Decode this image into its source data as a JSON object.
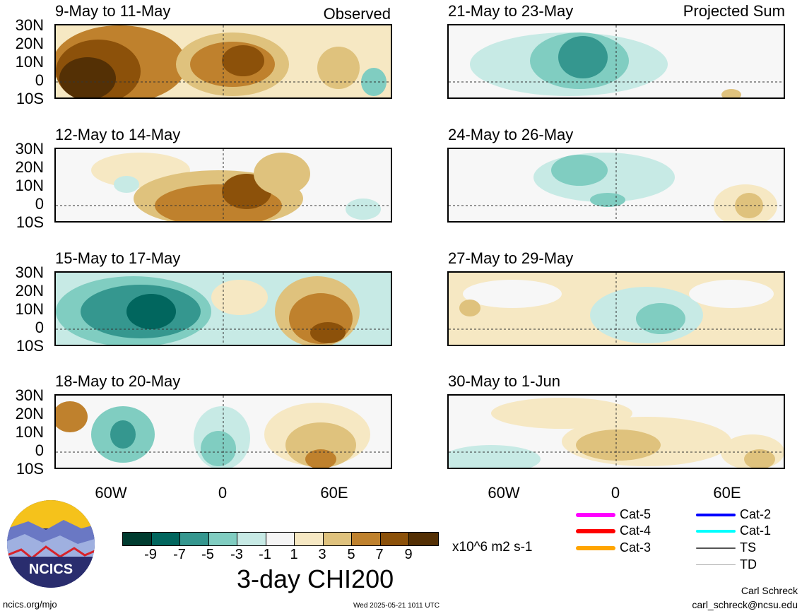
{
  "left_tag": "Observed",
  "right_tag": "Projected Sum",
  "lat_labels": [
    "30N",
    "20N",
    "10N",
    "0",
    "10S"
  ],
  "lon_labels": [
    "60W",
    "0",
    "60E"
  ],
  "panels_left": [
    {
      "title": "9-May to 11-May"
    },
    {
      "title": "12-May to 14-May"
    },
    {
      "title": "15-May to 17-May"
    },
    {
      "title": "18-May to 20-May"
    }
  ],
  "panels_right": [
    {
      "title": "21-May to 23-May"
    },
    {
      "title": "24-May to 26-May"
    },
    {
      "title": "27-May to 29-May"
    },
    {
      "title": "30-May to 1-Jun"
    }
  ],
  "colorbar": {
    "colors": [
      "#003c30",
      "#01665e",
      "#35978f",
      "#80cdc1",
      "#c7eae5",
      "#f5f5f5",
      "#f6e8c3",
      "#dfc27d",
      "#bf812d",
      "#8c510a",
      "#543005"
    ],
    "labels": [
      "-9",
      "-7",
      "-5",
      "-3",
      "-1",
      "1",
      "3",
      "5",
      "7",
      "9"
    ],
    "units": "x10^6 m2 s-1",
    "title": "3-day CHI200"
  },
  "legend": [
    {
      "label": "Cat-5",
      "color": "#ff00ff",
      "weight": 6
    },
    {
      "label": "Cat-2",
      "color": "#0000ff",
      "weight": 4
    },
    {
      "label": "Cat-4",
      "color": "#ff0000",
      "weight": 6
    },
    {
      "label": "Cat-1",
      "color": "#00ffff",
      "weight": 4
    },
    {
      "label": "Cat-3",
      "color": "#ffa500",
      "weight": 6
    },
    {
      "label": "TS",
      "color": "#555555",
      "weight": 2
    },
    {
      "label": "TD",
      "color": "#aaaaaa",
      "weight": 1
    }
  ],
  "logo_text": "NCICS",
  "footer": {
    "left": "ncics.org/mjo",
    "center": "Wed 2025-05-21 1011 UTC",
    "author": "Carl Schreck",
    "email": "carl_schreck@ncsu.edu"
  }
}
